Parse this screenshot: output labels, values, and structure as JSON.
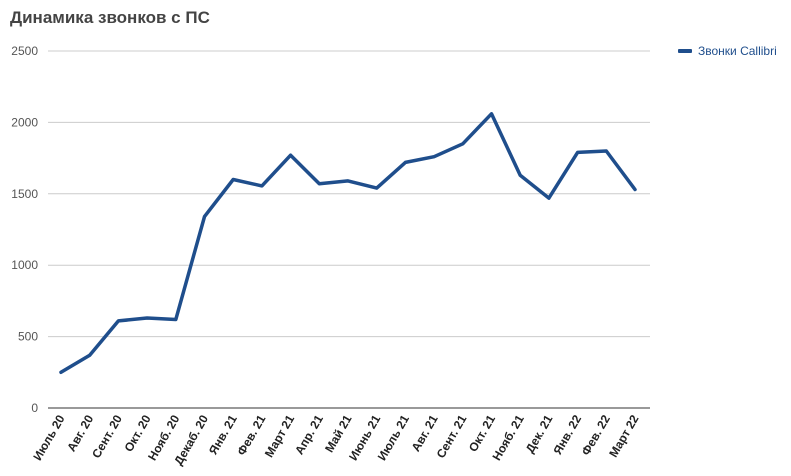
{
  "chart_data": {
    "type": "line",
    "title": "Динамика звонков с ПС",
    "xlabel": "",
    "ylabel": "",
    "ylim": [
      0,
      2500
    ],
    "yticks": [
      "0",
      "500",
      "1000",
      "1500",
      "2000",
      "2500"
    ],
    "grid": true,
    "legend_position": "top-right",
    "categories": [
      "Июль 20",
      "Авг. 20",
      "Сент. 20",
      "Окт. 20",
      "Нояб. 20",
      "Декаб. 20",
      "Янв. 21",
      "Фев. 21",
      "Март 21",
      "Апр. 21",
      "Май 21",
      "Июнь 21",
      "Июль 21",
      "Авг. 21",
      "Сент. 21",
      "Окт. 21",
      "Нояб. 21",
      "Дек. 21",
      "Янв. 22",
      "Фев. 22",
      "Март 22"
    ],
    "series": [
      {
        "name": "Звонки Callibri",
        "color": "#1f4e8c",
        "values": [
          250,
          370,
          610,
          630,
          620,
          1340,
          1600,
          1555,
          1770,
          1570,
          1590,
          1540,
          1720,
          1760,
          1850,
          2060,
          1630,
          1470,
          1790,
          1800,
          1530
        ]
      }
    ]
  }
}
